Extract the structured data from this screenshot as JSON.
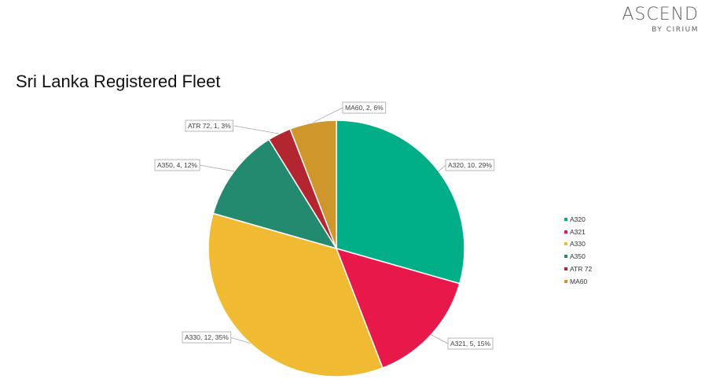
{
  "logo": {
    "main": "ASCEND",
    "sub": "BY CIRIUM"
  },
  "chart_data": {
    "type": "pie",
    "title": "Sri Lanka Registered Fleet",
    "legend_position": "right",
    "slices": [
      {
        "name": "A320",
        "value": 10,
        "percent": 29,
        "label": "A320, 10, 29%",
        "color": "#00AE88"
      },
      {
        "name": "A321",
        "value": 5,
        "percent": 15,
        "label": "A321, 5, 15%",
        "color": "#E8194A"
      },
      {
        "name": "A330",
        "value": 12,
        "percent": 35,
        "label": "A330, 12, 35%",
        "color": "#F0BB33"
      },
      {
        "name": "A350",
        "value": 4,
        "percent": 12,
        "label": "A350, 4, 12%",
        "color": "#238A6F"
      },
      {
        "name": "ATR 72",
        "value": 1,
        "percent": 3,
        "label": "ATR 72, 1, 3%",
        "color": "#B3252F"
      },
      {
        "name": "MA60",
        "value": 2,
        "percent": 6,
        "label": "MA60, 2, 6%",
        "color": "#CF962B"
      }
    ]
  }
}
